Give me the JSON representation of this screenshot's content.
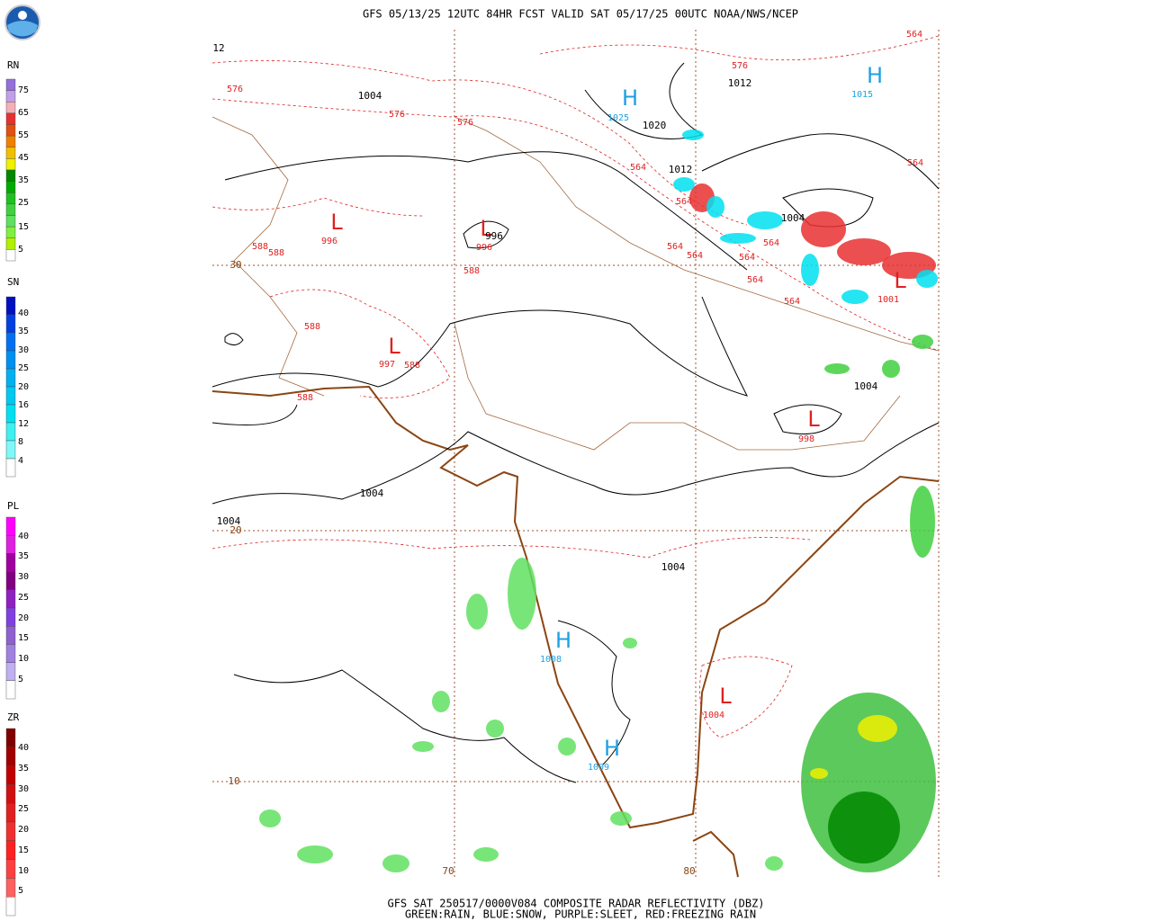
{
  "header": "GFS 05/13/25 12UTC 84HR FCST VALID SAT 05/17/25 00UTC NOAA/NWS/NCEP",
  "footer": [
    "GFS SAT 250517/0000V084 COMPOSITE RADAR REFLECTIVITY (DBZ)",
    "GREEN:RAIN, BLUE:SNOW, PURPLE:SLEET, RED:FREEZING RAIN"
  ],
  "legends": [
    {
      "label": "RN",
      "ticks": [
        "75",
        "65",
        "55",
        "45",
        "35",
        "25",
        "15",
        "5"
      ],
      "colors": [
        "#9370db",
        "#c0a0e8",
        "#f4b0b8",
        "#e83030",
        "#e05010",
        "#f08000",
        "#f0c000",
        "#f0f000",
        "#008800",
        "#00aa00",
        "#20c020",
        "#40d040",
        "#60e060",
        "#80f040",
        "#b0f000",
        "#ffffff"
      ]
    },
    {
      "label": "SN",
      "ticks": [
        "40",
        "35",
        "30",
        "25",
        "20",
        "16",
        "12",
        "8",
        "4"
      ],
      "colors": [
        "#0010c0",
        "#0040e0",
        "#0070f0",
        "#0090f0",
        "#00b0f0",
        "#00c8f0",
        "#00e0f0",
        "#40f0f0",
        "#80f8f8",
        "#ffffff"
      ]
    },
    {
      "label": "PL",
      "ticks": [
        "40",
        "35",
        "30",
        "25",
        "20",
        "15",
        "10",
        "5"
      ],
      "colors": [
        "#ff00ff",
        "#e020e0",
        "#a000a0",
        "#800080",
        "#9020c0",
        "#8040e0",
        "#9060d0",
        "#a080e0",
        "#c0b0f0",
        "#ffffff"
      ]
    },
    {
      "label": "ZR",
      "ticks": [
        "40",
        "35",
        "30",
        "25",
        "20",
        "15",
        "10",
        "5"
      ],
      "colors": [
        "#800000",
        "#a00000",
        "#c00000",
        "#d01010",
        "#e02020",
        "#f03030",
        "#ff2020",
        "#ff4040",
        "#ff6060",
        "#ffffff"
      ]
    }
  ],
  "map": {
    "lat_labels": [
      "30",
      "20",
      "10"
    ],
    "lon_labels": [
      "70",
      "80"
    ],
    "highs": [
      {
        "symbol": "H",
        "value": "1025"
      },
      {
        "symbol": "H",
        "value": "1015"
      },
      {
        "symbol": "H",
        "value": "1008"
      },
      {
        "symbol": "H",
        "value": "1009"
      }
    ],
    "lows": [
      {
        "symbol": "L",
        "value": "996"
      },
      {
        "symbol": "L",
        "value": "996"
      },
      {
        "symbol": "L",
        "value": "997"
      },
      {
        "symbol": "L",
        "value": "998"
      },
      {
        "symbol": "L",
        "value": "1004"
      },
      {
        "symbol": "L",
        "value": "1001"
      }
    ],
    "isobars": [
      "1004",
      "1020",
      "1012",
      "1012",
      "1004",
      "996",
      "1004",
      "1004",
      "1004",
      "1004",
      "12"
    ],
    "thickness": [
      "576",
      "576",
      "576",
      "576",
      "564",
      "564",
      "564",
      "564",
      "564",
      "564",
      "564",
      "564",
      "564",
      "564",
      "588",
      "588",
      "588",
      "588",
      "588",
      "588"
    ]
  }
}
